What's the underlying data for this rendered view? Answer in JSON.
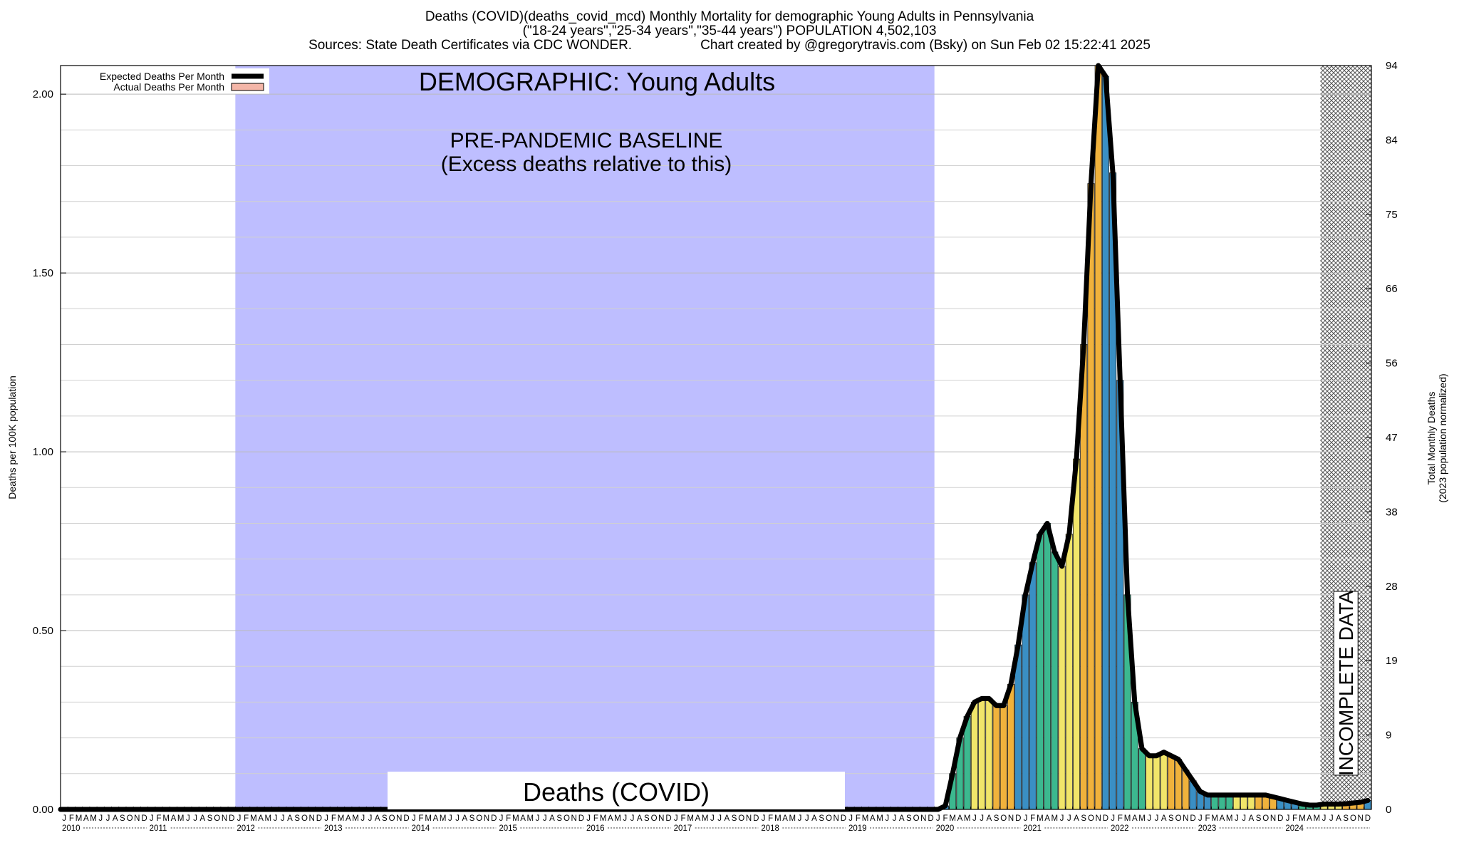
{
  "header": {
    "title": "Deaths (COVID)(deaths_covid_mcd) Monthly Mortality for demographic Young Adults in Pennsylvania",
    "subtitle": "(\"18-24 years\",\"25-34 years\",\"35-44 years\") POPULATION 4,502,103",
    "sources": "Sources: State Death Certificates via CDC WONDER.",
    "credit": "Chart created by @gregorytravis.com (Bsky) on Sun Feb 02 15:22:41 2025"
  },
  "chart_data": {
    "type": "bar",
    "ylabel": "Deaths per 100K population",
    "y2label_line1": "Total Monthly Deaths",
    "y2label_line2": "(2023 population normalized)",
    "ylim": [
      0,
      2.08
    ],
    "y_ticks": [
      "0.00",
      "0.50",
      "1.00",
      "1.50",
      "2.00"
    ],
    "y2_ticks": [
      "0",
      "9",
      "19",
      "28",
      "38",
      "47",
      "56",
      "66",
      "75",
      "84",
      "94"
    ],
    "month_letters": [
      "J",
      "F",
      "M",
      "A",
      "M",
      "J",
      "J",
      "A",
      "S",
      "O",
      "N",
      "D"
    ],
    "years": [
      "2010",
      "2011",
      "2012",
      "2013",
      "2014",
      "2015",
      "2016",
      "2017",
      "2018",
      "2019",
      "2020",
      "2021",
      "2022",
      "2023",
      "2024"
    ],
    "legend": [
      {
        "label": "Expected Deaths Per Month",
        "color": "#000000"
      },
      {
        "label": "Actual Deaths Per Month",
        "color": "#f4b6a8"
      }
    ],
    "demographic_label": "DEMOGRAPHIC: Young Adults",
    "baseline_label_1": "PRE-PANDEMIC BASELINE",
    "baseline_label_2": "(Excess deaths relative to this)",
    "baseline_range": [
      "2012-01",
      "2019-12"
    ],
    "incomplete_label": "INCOMPLETE DATA",
    "incomplete_range": [
      "2024-06",
      "2024-12"
    ],
    "cause_label": "Deaths (COVID)",
    "baseline_color": "#bebeff",
    "bar_colors": [
      "#3a8fc4",
      "#3cb88f",
      "#f1e56a",
      "#f0b23c"
    ],
    "start": "2010-01",
    "monthly_values": [
      0,
      0,
      0,
      0,
      0,
      0,
      0,
      0,
      0,
      0,
      0,
      0,
      0,
      0,
      0,
      0,
      0,
      0,
      0,
      0,
      0,
      0,
      0,
      0,
      0,
      0,
      0,
      0,
      0,
      0,
      0,
      0,
      0,
      0,
      0,
      0,
      0,
      0,
      0,
      0,
      0,
      0,
      0,
      0,
      0,
      0,
      0,
      0,
      0,
      0,
      0,
      0,
      0,
      0,
      0,
      0,
      0,
      0,
      0,
      0,
      0,
      0,
      0,
      0,
      0,
      0,
      0,
      0,
      0,
      0,
      0,
      0,
      0,
      0,
      0,
      0,
      0,
      0,
      0,
      0,
      0,
      0,
      0,
      0,
      0,
      0,
      0,
      0,
      0,
      0,
      0,
      0,
      0,
      0,
      0,
      0,
      0,
      0,
      0,
      0,
      0,
      0,
      0,
      0,
      0,
      0,
      0,
      0,
      0,
      0,
      0,
      0,
      0,
      0,
      0,
      0,
      0,
      0,
      0,
      0,
      0,
      0.01,
      0.1,
      0.2,
      0.26,
      0.3,
      0.31,
      0.31,
      0.29,
      0.29,
      0.35,
      0.46,
      0.6,
      0.69,
      0.77,
      0.8,
      0.72,
      0.68,
      0.77,
      0.98,
      1.3,
      1.75,
      2.08,
      2.05,
      1.78,
      1.2,
      0.6,
      0.3,
      0.17,
      0.15,
      0.15,
      0.16,
      0.15,
      0.14,
      0.11,
      0.08,
      0.05,
      0.04,
      0.04,
      0.04,
      0.04,
      0.04,
      0.04,
      0.04,
      0.04,
      0.04,
      0.035,
      0.03,
      0.025,
      0.02,
      0.015,
      0.012,
      0.012,
      0.015,
      0.015,
      0.015,
      0.016,
      0.018,
      0.02,
      0.025
    ]
  }
}
